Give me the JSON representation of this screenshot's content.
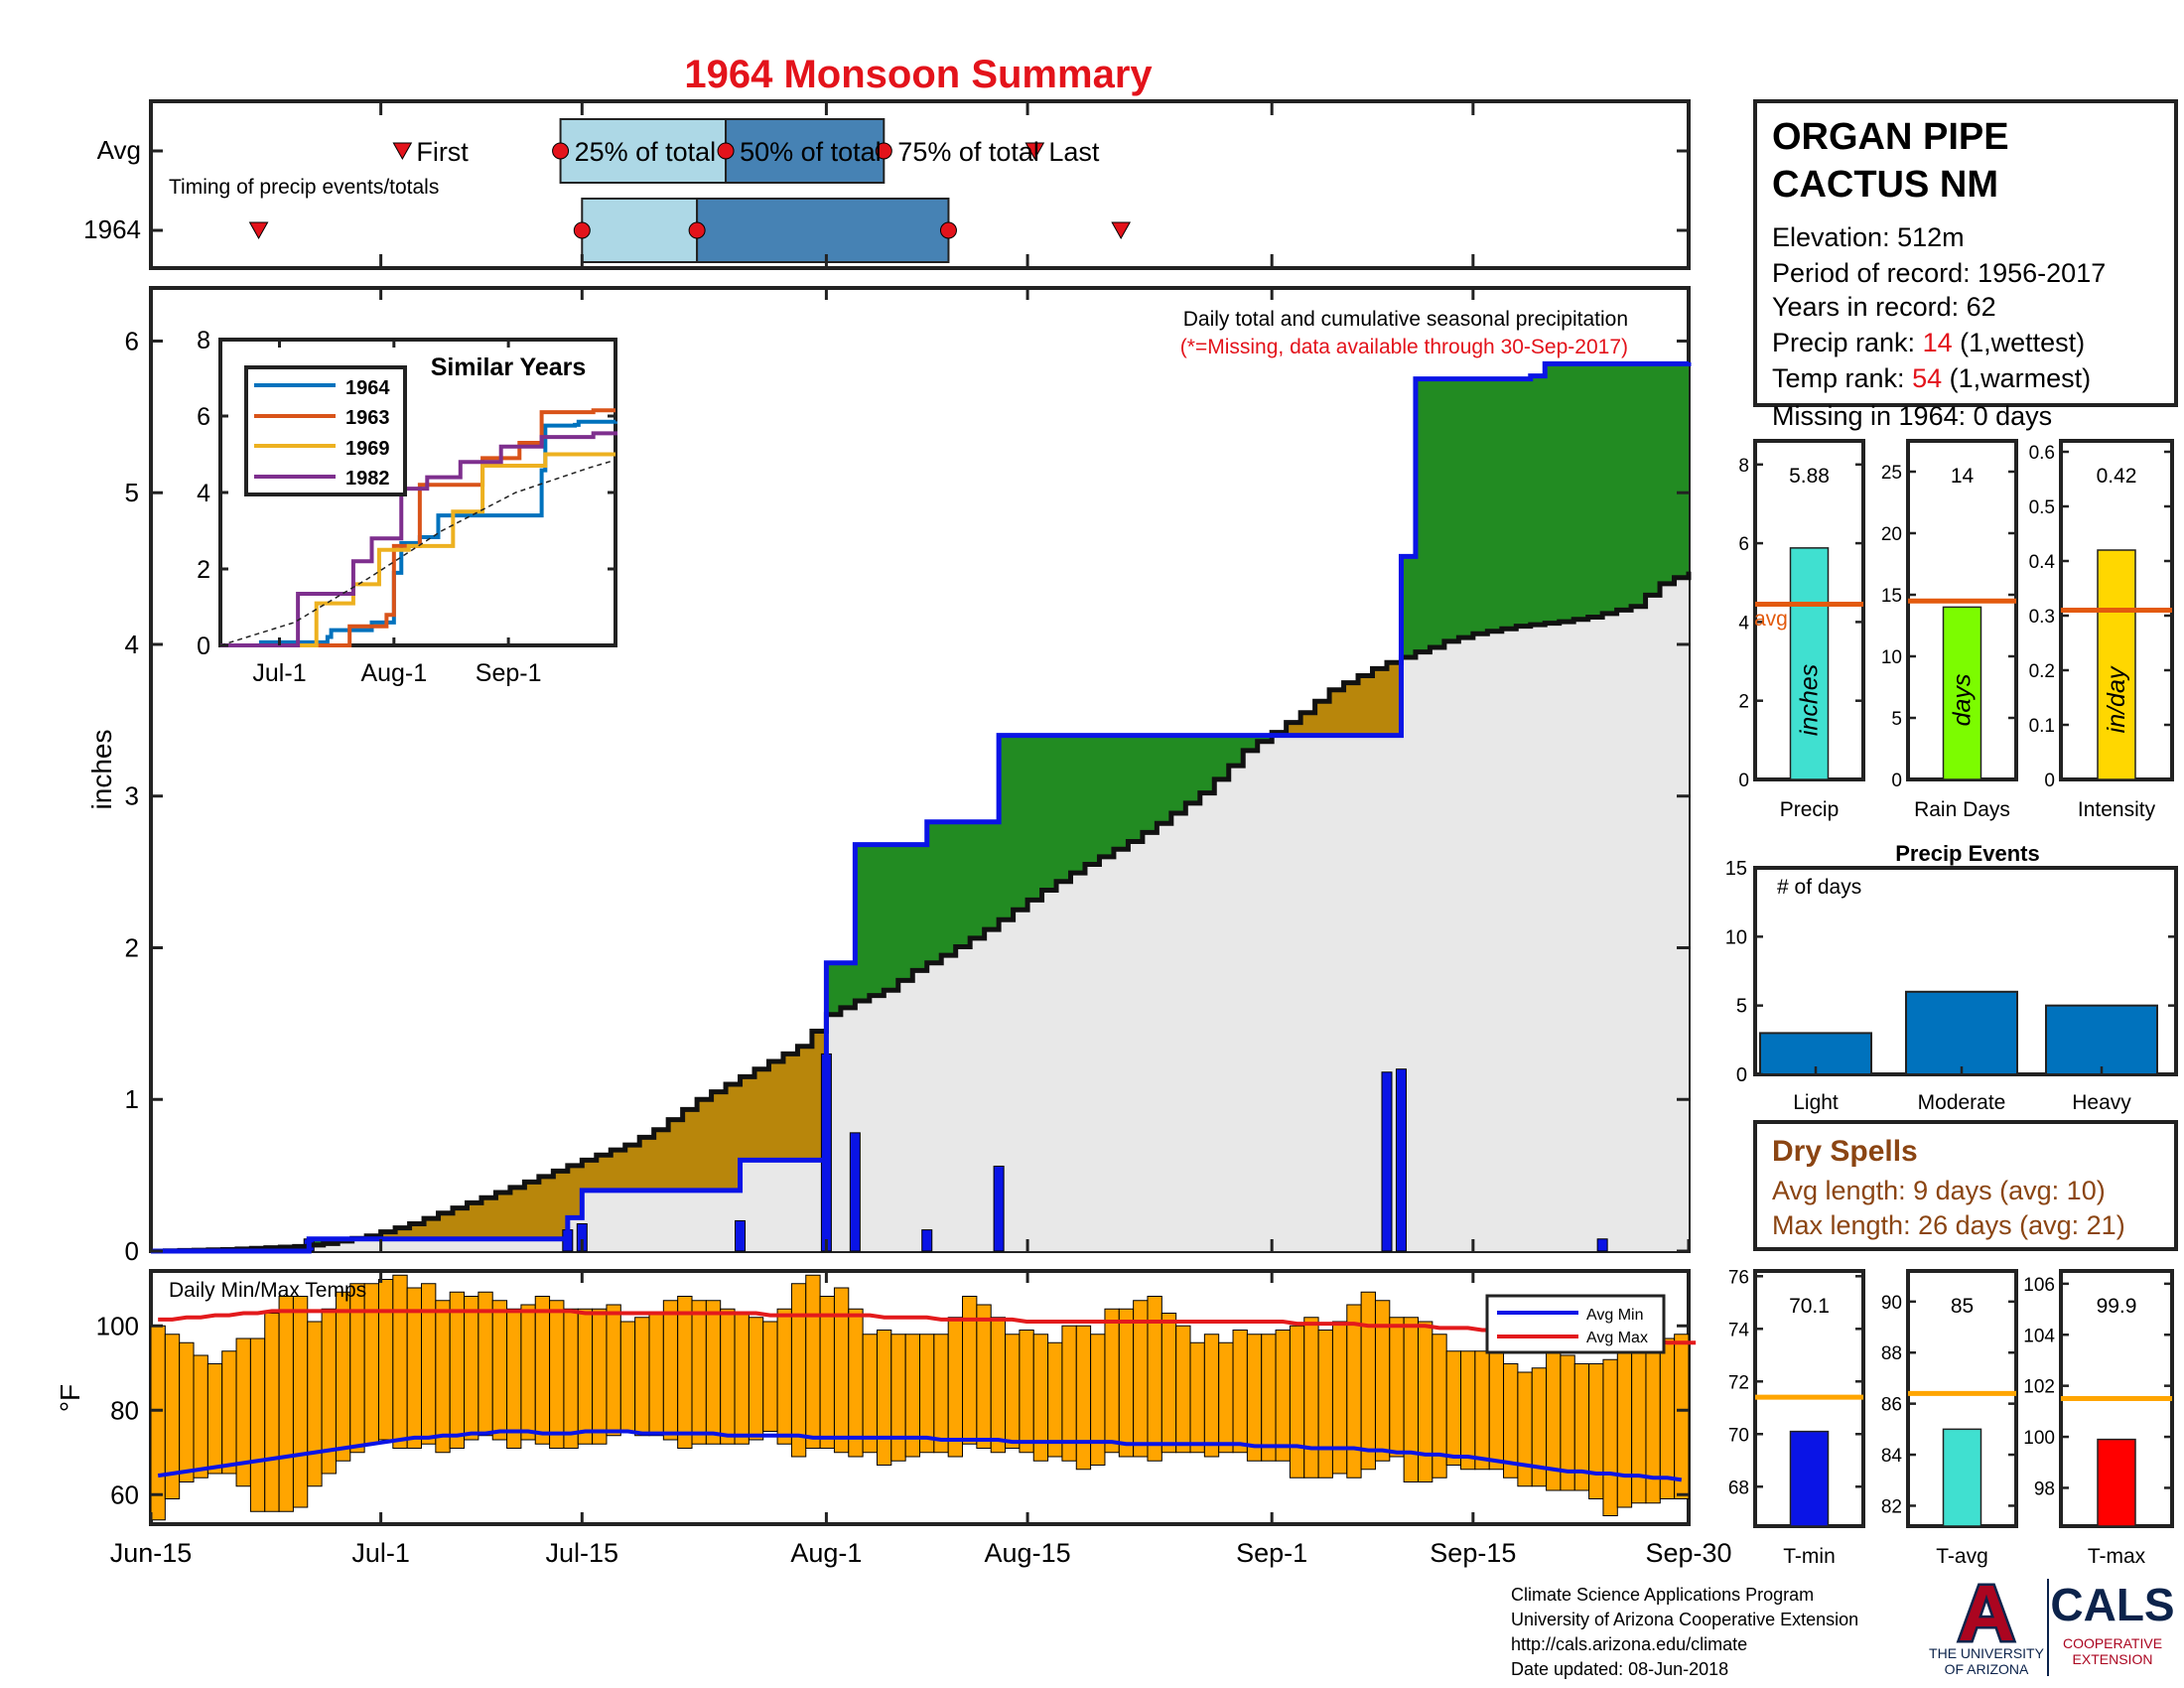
{
  "title": "1964 Monsoon Summary",
  "colors": {
    "title": "#e3131b",
    "blue_line": "#0a14e6",
    "green_fill": "#228b22",
    "brown_fill": "#b8860b",
    "gray_fill": "#e8e8e8",
    "light_blue": "#add8e6",
    "steel_blue": "#4682b4",
    "orange": "#ffa500",
    "red": "#e31a1c",
    "avg_line": "#e35a0d",
    "dry_spell": "#8b4513",
    "footer_navy": "#0c234b",
    "footer_red": "#ab0520"
  },
  "timing": {
    "row_labels": [
      "Avg",
      "1964"
    ],
    "subtitle": "Timing of precip events/totals",
    "avg_labels": {
      "first": "First",
      "p25": "25% of total",
      "p50": "50% of total",
      "p75": "75% of total",
      "last": "Last"
    },
    "avg": {
      "first": 17.5,
      "p25": 28.5,
      "p50": 40.0,
      "p75": 51.0,
      "last": 61.5
    },
    "year": {
      "first": 7.5,
      "p25": 30.0,
      "p50": 38.0,
      "p75": 55.5,
      "last": 67.5
    }
  },
  "main": {
    "note": "Daily total and cumulative seasonal precipitation",
    "missing_note": "(*=Missing, data available through 30-Sep-2017)",
    "ylabel": "inches"
  },
  "similar_years": {
    "title": "Similar Years",
    "legend": [
      "1964",
      "1963",
      "1969",
      "1982"
    ],
    "series_colors": [
      "#0072bd",
      "#d95319",
      "#edb120",
      "#7e2f8e"
    ],
    "x_ticks": [
      "Jul-1",
      "Aug-1",
      "Sep-1"
    ],
    "y_ticks": [
      "0",
      "2",
      "4",
      "6",
      "8"
    ]
  },
  "temps": {
    "label": "Daily Min/Max Temps",
    "ylabel": "°F",
    "legend": [
      "Avg Min",
      "Avg Max"
    ]
  },
  "station": {
    "name_line1": "ORGAN PIPE",
    "name_line2": "CACTUS NM",
    "elevation": "Elevation: 512m",
    "period": "Period of record: 1956-2017",
    "years": "Years in record: 62",
    "precip_rank_label": "Precip rank: ",
    "precip_rank_value": "14",
    "precip_rank_suffix": " (1,wettest)",
    "temp_rank_label": "Temp rank: ",
    "temp_rank_value": "54",
    "temp_rank_suffix": " (1,warmest)",
    "missing": "Missing in 1964: 0 days"
  },
  "panels": {
    "precip": {
      "value_text": "5.88",
      "inner_label": "inches",
      "xlabel": "Precip",
      "avg_label": "avg",
      "y_ticks": [
        "0",
        "2",
        "4",
        "6",
        "8"
      ]
    },
    "rain_days": {
      "value_text": "14",
      "inner_label": "days",
      "xlabel": "Rain Days",
      "y_ticks": [
        "0",
        "5",
        "10",
        "15",
        "20",
        "25"
      ]
    },
    "intensity": {
      "value_text": "0.42",
      "inner_label": "in/day",
      "xlabel": "Intensity",
      "y_ticks": [
        "0",
        "0.1",
        "0.2",
        "0.3",
        "0.4",
        "0.5",
        "0.6"
      ]
    },
    "precip_events": {
      "title": "Precip Events",
      "ylabel": "# of days",
      "categories": [
        "Light",
        "Moderate",
        "Heavy"
      ],
      "y_ticks": [
        "0",
        "5",
        "10",
        "15"
      ]
    },
    "tmin": {
      "value_text": "70.1",
      "xlabel": "T-min",
      "y_ticks": [
        "68",
        "70",
        "72",
        "74",
        "76"
      ]
    },
    "tavg": {
      "value_text": "85",
      "xlabel": "T-avg",
      "y_ticks": [
        "82",
        "84",
        "86",
        "88",
        "90"
      ]
    },
    "tmax": {
      "value_text": "99.9",
      "xlabel": "T-max",
      "y_ticks": [
        "98",
        "100",
        "102",
        "104",
        "106"
      ]
    }
  },
  "dry_spells": {
    "title": "Dry Spells",
    "avg_length": "Avg length: 9 days (avg: 10)",
    "max_length": "Max length: 26 days (avg: 21)"
  },
  "footer": {
    "lines": [
      "Climate Science Applications Program",
      "University of Arizona Cooperative Extension",
      "http://cals.arizona.edu/climate",
      " Date updated: 08-Jun-2018"
    ],
    "ua_line1": "THE UNIVERSITY",
    "ua_line2": "OF ARIZONA",
    "cals": "CALS",
    "coop1": "COOPERATIVE",
    "coop2": "EXTENSION",
    "ua_logo_letter": "A"
  },
  "chart_data": [
    {
      "type": "area",
      "title": "",
      "ylabel": "inches",
      "x_tick_labels": [
        "Jun-15",
        "Jul-1",
        "Jul-15",
        "Aug-1",
        "Aug-15",
        "Sep-1",
        "Sep-15",
        "Sep-30"
      ],
      "x_tick_days": [
        0,
        16,
        30,
        47,
        61,
        78,
        92,
        107
      ],
      "y_ticks": [
        0,
        1,
        2,
        3,
        4,
        5,
        6
      ],
      "ylim": [
        0,
        6.35
      ],
      "avg_cumulative": {
        "name": "Avg cumulative",
        "x": [
          0,
          5,
          10,
          12,
          15,
          18,
          20,
          25,
          30,
          33,
          35,
          38,
          40,
          42,
          45,
          46,
          47,
          49,
          51,
          53,
          55,
          58,
          60,
          62,
          65,
          68,
          70,
          73,
          75,
          76,
          78,
          80,
          82,
          85,
          86,
          88,
          89,
          90,
          92,
          95,
          98,
          100,
          103,
          105,
          107
        ],
        "values": [
          0.0,
          0.01,
          0.03,
          0.05,
          0.1,
          0.18,
          0.25,
          0.42,
          0.6,
          0.7,
          0.8,
          1.0,
          1.1,
          1.2,
          1.35,
          1.45,
          1.56,
          1.65,
          1.72,
          1.85,
          1.95,
          2.12,
          2.25,
          2.38,
          2.55,
          2.7,
          2.82,
          3.02,
          3.2,
          3.3,
          3.42,
          3.55,
          3.7,
          3.84,
          3.88,
          3.95,
          3.98,
          4.02,
          4.07,
          4.12,
          4.15,
          4.18,
          4.25,
          4.4,
          4.48
        ]
      },
      "year_cumulative": {
        "name": "1964 cumulative",
        "x": [
          0,
          11,
          27,
          29,
          30,
          40,
          41,
          46,
          47,
          48,
          49,
          53,
          54,
          58,
          59,
          86,
          87,
          88,
          96,
          97,
          107
        ],
        "values": [
          0.0,
          0.08,
          0.08,
          0.22,
          0.4,
          0.4,
          0.6,
          0.6,
          1.9,
          1.9,
          2.68,
          2.68,
          2.83,
          2.83,
          3.4,
          3.4,
          4.58,
          5.75,
          5.77,
          5.85,
          5.86
        ]
      },
      "daily_bars": {
        "name": "Daily precip",
        "x": [
          11,
          29,
          30,
          41,
          47,
          49,
          54,
          59,
          86,
          87,
          101
        ],
        "values": [
          0.08,
          0.14,
          0.18,
          0.2,
          1.3,
          0.78,
          0.14,
          0.56,
          1.18,
          1.2,
          0.08
        ]
      }
    },
    {
      "type": "line",
      "title": "Similar Years",
      "x_ticks": [
        "Jul-1",
        "Aug-1",
        "Sep-1"
      ],
      "ylim": [
        0,
        8
      ],
      "series": [
        {
          "name": "1964",
          "x": [
            0,
            11,
            27,
            29,
            30,
            40,
            41,
            46,
            47,
            48,
            49,
            53,
            54,
            58,
            59,
            86,
            87,
            88,
            96,
            97,
            107
          ],
          "values": [
            0.0,
            0.08,
            0.08,
            0.22,
            0.4,
            0.4,
            0.6,
            0.6,
            1.9,
            1.9,
            2.68,
            2.68,
            2.83,
            2.83,
            3.4,
            3.4,
            4.58,
            5.75,
            5.77,
            5.85,
            5.86
          ]
        },
        {
          "name": "1963",
          "x": [
            0,
            34,
            35,
            44,
            45,
            46,
            47,
            53,
            54,
            70,
            71,
            80,
            81,
            86,
            87,
            100,
            101,
            107
          ],
          "values": [
            0.0,
            0.0,
            0.5,
            0.5,
            0.8,
            0.8,
            2.6,
            2.6,
            4.2,
            4.2,
            4.9,
            4.9,
            5.3,
            5.3,
            6.1,
            6.1,
            6.15,
            6.15
          ]
        },
        {
          "name": "1969",
          "x": [
            0,
            25,
            26,
            35,
            36,
            42,
            43,
            50,
            51,
            62,
            63,
            70,
            71,
            87,
            88,
            107
          ],
          "values": [
            0.0,
            0.0,
            1.1,
            1.1,
            1.6,
            1.6,
            2.5,
            2.5,
            2.6,
            2.6,
            3.5,
            3.5,
            4.7,
            4.7,
            5.0,
            5.0
          ]
        },
        {
          "name": "1982",
          "x": [
            0,
            20,
            21,
            35,
            36,
            40,
            41,
            48,
            49,
            55,
            56,
            64,
            65,
            75,
            76,
            86,
            87,
            100,
            101,
            107
          ],
          "values": [
            0.0,
            0.0,
            1.35,
            1.35,
            2.2,
            2.2,
            2.8,
            2.8,
            4.1,
            4.1,
            4.4,
            4.4,
            4.8,
            4.8,
            5.2,
            5.2,
            5.45,
            5.45,
            5.55,
            5.6
          ]
        },
        {
          "name": "Avg",
          "x": [
            0,
            20,
            40,
            60,
            80,
            100,
            107
          ],
          "values": [
            0.0,
            0.6,
            1.75,
            3.0,
            4.0,
            4.65,
            4.85
          ]
        }
      ]
    },
    {
      "type": "bar",
      "title": "Daily Min/Max Temps",
      "ylabel": "°F",
      "y_ticks": [
        60,
        80,
        100
      ],
      "ylim": [
        53,
        113
      ],
      "tmax": [
        100,
        98,
        96,
        93,
        91,
        94,
        97,
        97,
        103,
        107,
        107,
        101,
        104,
        108,
        110,
        110,
        111,
        112,
        109,
        110,
        106,
        108,
        107,
        108,
        106,
        104,
        105,
        107,
        106,
        104,
        104,
        104,
        105,
        101,
        102,
        103,
        106,
        107,
        106,
        106,
        104,
        103,
        102,
        101,
        104,
        110,
        112,
        107,
        109,
        104,
        98,
        99,
        98,
        98,
        98,
        98,
        102,
        107,
        105,
        102,
        98,
        99,
        98,
        96,
        100,
        100,
        98,
        104,
        104,
        106,
        107,
        103,
        100,
        96,
        98,
        96,
        99,
        98,
        98,
        99,
        100,
        102,
        99,
        101,
        105,
        108,
        106,
        102,
        102,
        101,
        98,
        94,
        94,
        94,
        95,
        91,
        89,
        90,
        95,
        93,
        91,
        91,
        92,
        96,
        96,
        96,
        97,
        98
      ],
      "tmin": [
        54,
        59,
        63,
        64,
        65,
        65,
        62,
        56,
        56,
        56,
        57,
        62,
        65,
        68,
        70,
        72,
        73,
        71,
        71,
        72,
        70,
        71,
        73,
        74,
        73,
        71,
        73,
        72,
        71,
        71,
        72,
        72,
        74,
        75,
        74,
        74,
        73,
        71,
        72,
        72,
        72,
        72,
        73,
        75,
        72,
        69,
        71,
        71,
        70,
        69,
        70,
        67,
        68,
        69,
        70,
        70,
        69,
        72,
        71,
        70,
        71,
        70,
        68,
        69,
        68,
        66,
        67,
        70,
        69,
        69,
        68,
        70,
        70,
        70,
        69,
        70,
        70,
        68,
        68,
        68,
        64,
        64,
        64,
        65,
        64,
        66,
        68,
        69,
        63,
        63,
        64,
        67,
        66,
        66,
        66,
        64,
        62,
        62,
        61,
        61,
        61,
        59,
        55,
        57,
        58,
        58,
        59,
        59
      ],
      "avg_min": [
        64.5,
        65,
        65.5,
        66,
        66.5,
        67,
        67.5,
        68,
        68.5,
        69,
        69.5,
        70,
        70.5,
        71,
        71.5,
        72,
        72.5,
        73,
        73.5,
        73.5,
        74,
        74,
        74.5,
        74.5,
        75,
        75,
        75,
        74.5,
        74.5,
        74.5,
        75,
        75,
        75,
        75,
        74.5,
        74.5,
        74.5,
        74.5,
        74.5,
        74.5,
        74,
        74,
        74,
        74,
        74,
        74,
        73.5,
        73.5,
        73.5,
        73.5,
        73.5,
        73.5,
        73.5,
        73.5,
        73.5,
        73,
        73,
        73,
        73,
        73,
        72.5,
        72.5,
        72.5,
        72.5,
        72.5,
        72.5,
        72.5,
        72.5,
        72,
        72,
        72,
        72,
        72,
        72,
        72,
        72,
        72,
        71.5,
        71.5,
        71.5,
        71.5,
        71,
        71,
        71,
        71,
        70.5,
        70.5,
        70,
        70,
        69.5,
        69.5,
        69,
        69,
        68.5,
        68,
        67.5,
        67,
        66.5,
        66,
        65.5,
        65.5,
        65,
        65,
        64.5,
        64.5,
        64,
        64,
        63.5
      ],
      "avg_max": [
        101.5,
        101.5,
        102,
        102,
        102.5,
        102.5,
        103,
        103,
        103.5,
        103.5,
        103.5,
        103.5,
        103.5,
        103.5,
        103.5,
        103.5,
        103.5,
        103.5,
        103.5,
        103.5,
        103.5,
        103.5,
        103.5,
        103.5,
        103.5,
        103.5,
        103.5,
        103.5,
        103.5,
        103.5,
        103,
        103,
        103,
        103,
        103,
        103,
        103,
        103,
        103,
        103,
        103,
        103,
        103,
        102.5,
        102.5,
        102.5,
        102.5,
        102.5,
        102.5,
        102.5,
        102.5,
        102,
        102,
        102,
        102,
        101.5,
        101.5,
        101.5,
        101.5,
        101.5,
        101.5,
        101,
        101,
        101,
        101,
        101,
        101,
        101,
        101,
        101,
        101,
        101,
        101,
        101,
        101,
        101,
        101,
        101,
        101,
        101,
        100.5,
        100.5,
        100.5,
        100.5,
        100.5,
        100,
        100,
        100,
        100,
        100,
        99.5,
        99.5,
        99.5,
        99,
        99,
        99,
        98.5,
        98.5,
        98,
        98,
        97.5,
        97.5,
        97,
        97,
        96.5,
        96.5,
        96,
        96,
        96
      ]
    },
    {
      "type": "bar",
      "title": "Precip",
      "categories": [
        "Precip"
      ],
      "values": [
        5.88
      ],
      "avg": 4.45,
      "ylim": [
        0,
        8.6
      ]
    },
    {
      "type": "bar",
      "title": "Rain Days",
      "categories": [
        "Rain Days"
      ],
      "values": [
        14
      ],
      "avg": 14.5,
      "ylim": [
        0,
        27.5
      ]
    },
    {
      "type": "bar",
      "title": "Intensity",
      "categories": [
        "Intensity"
      ],
      "values": [
        0.42
      ],
      "avg": 0.31,
      "ylim": [
        0,
        0.62
      ]
    },
    {
      "type": "bar",
      "title": "Precip Events",
      "ylabel": "# of days",
      "categories": [
        "Light",
        "Moderate",
        "Heavy"
      ],
      "values": [
        3,
        6,
        5
      ],
      "ylim": [
        0,
        15
      ]
    },
    {
      "type": "bar",
      "title": "T-min",
      "categories": [
        "T-min"
      ],
      "values": [
        70.1
      ],
      "avg": 71.4,
      "ylim": [
        66.5,
        76.2
      ]
    },
    {
      "type": "bar",
      "title": "T-avg",
      "categories": [
        "T-avg"
      ],
      "values": [
        85
      ],
      "avg": 86.4,
      "ylim": [
        81.2,
        91.2
      ]
    },
    {
      "type": "bar",
      "title": "T-max",
      "categories": [
        "T-max"
      ],
      "values": [
        99.9
      ],
      "avg": 101.5,
      "ylim": [
        96.5,
        106.5
      ]
    }
  ]
}
